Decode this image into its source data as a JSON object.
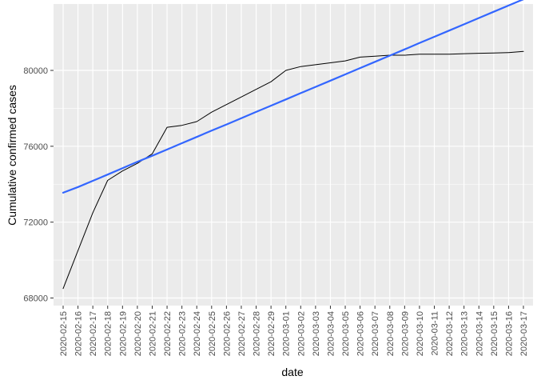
{
  "chart_data": {
    "type": "line",
    "xlabel": "date",
    "ylabel": "Cumulative confirmed cases",
    "grid": true,
    "ylim": [
      67600,
      83500
    ],
    "y_ticks": [
      68000,
      72000,
      76000,
      80000
    ],
    "y_tick_labels": [
      "68000",
      "72000",
      "76000",
      "80000"
    ],
    "x": [
      "2020-02-15",
      "2020-02-16",
      "2020-02-17",
      "2020-02-18",
      "2020-02-19",
      "2020-02-20",
      "2020-02-21",
      "2020-02-22",
      "2020-02-23",
      "2020-02-24",
      "2020-02-25",
      "2020-02-26",
      "2020-02-27",
      "2020-02-28",
      "2020-02-29",
      "2020-03-01",
      "2020-03-02",
      "2020-03-03",
      "2020-03-04",
      "2020-03-05",
      "2020-03-06",
      "2020-03-07",
      "2020-03-08",
      "2020-03-09",
      "2020-03-10",
      "2020-03-11",
      "2020-03-12",
      "2020-03-13",
      "2020-03-14",
      "2020-03-15",
      "2020-03-16",
      "2020-03-17"
    ],
    "series": [
      {
        "kind": "observed",
        "color": "#000000",
        "values": [
          68500,
          70500,
          72500,
          74200,
          74700,
          75100,
          75600,
          77000,
          77100,
          77300,
          77800,
          78200,
          78600,
          79000,
          79400,
          80000,
          80200,
          80300,
          80400,
          80500,
          80700,
          80750,
          80800,
          80800,
          80850,
          80850,
          80850,
          80880,
          80900,
          80920,
          80940,
          81000
        ]
      },
      {
        "kind": "linear-fit",
        "color": "#3366FF",
        "values": [
          73550,
          73850,
          74180,
          74510,
          74840,
          75180,
          75500,
          75830,
          76160,
          76490,
          76830,
          77150,
          77480,
          77810,
          78140,
          78470,
          78800,
          79130,
          79460,
          79790,
          80120,
          80450,
          80780,
          81110,
          81440,
          81770,
          82100,
          82430,
          82760,
          83090,
          83420,
          83750
        ]
      }
    ]
  }
}
